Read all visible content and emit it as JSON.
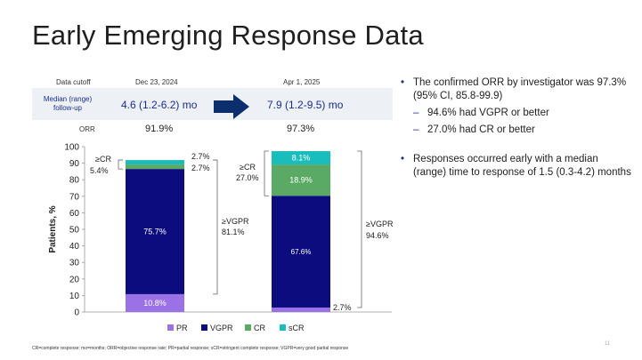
{
  "title": "Early Emerging Response Data",
  "table": {
    "cutoff_label": "Data cutoff",
    "median_label": "Median (range) follow-up",
    "orr_label": "ORR",
    "columns": [
      {
        "date": "Dec 23, 2024",
        "median": "4.6 (1.2-6.2) mo",
        "orr": "91.9%"
      },
      {
        "date": "Apr 1, 2025",
        "median": "7.9 (1.2-9.5) mo",
        "orr": "97.3%"
      }
    ]
  },
  "bullets": [
    {
      "text": "The confirmed ORR by investigator was 97.3% (95% CI, 85.8-99.9)",
      "subs": [
        "94.6% had VGPR or better",
        "27.0% had CR or better"
      ]
    },
    {
      "text": "Responses occurred early with a median (range) time to response of 1.5 (0.3-4.2) months",
      "subs": []
    }
  ],
  "chart_data": {
    "type": "bar",
    "stacked": true,
    "categories": [
      "Dec 23, 2024",
      "Apr 1, 2025"
    ],
    "series": [
      {
        "name": "PR",
        "color": "#9b72e6",
        "values": [
          10.8,
          2.7
        ]
      },
      {
        "name": "VGPR",
        "color": "#0c0c7e",
        "values": [
          75.7,
          67.6
        ]
      },
      {
        "name": "CR",
        "color": "#5aaa65",
        "values": [
          2.7,
          18.9
        ]
      },
      {
        "name": "sCR",
        "color": "#1bbcbc",
        "values": [
          2.7,
          8.1
        ]
      }
    ],
    "ylabel": "Patients, %",
    "ylim": [
      0,
      100
    ],
    "yticks": [
      0,
      10,
      20,
      30,
      40,
      50,
      60,
      70,
      80,
      90,
      100
    ],
    "bar_labels": [
      {
        "PR": "10.8%",
        "VGPR": "75.7%",
        "CR": "2.7%",
        "sCR": "2.7%"
      },
      {
        "PR": "2.7%",
        "VGPR": "67.6%",
        "CR": "18.9%",
        "sCR": "8.1%"
      }
    ],
    "brackets": [
      {
        "cr_label": "≥CR",
        "cr_value": "5.4%",
        "vgpr_label": "≥VGPR",
        "vgpr_value": "81.1%"
      },
      {
        "cr_label": "≥CR",
        "cr_value": "27.0%",
        "vgpr_label": "≥VGPR",
        "vgpr_value": "94.6%"
      }
    ],
    "legend": [
      "PR",
      "VGPR",
      "CR",
      "sCR"
    ]
  },
  "footnote": "CR=complete response; mo=months; ORR=objective response rate; PR=partial response; sCR=stringent complete response; VGPR=very good partial response",
  "page_number": "11"
}
